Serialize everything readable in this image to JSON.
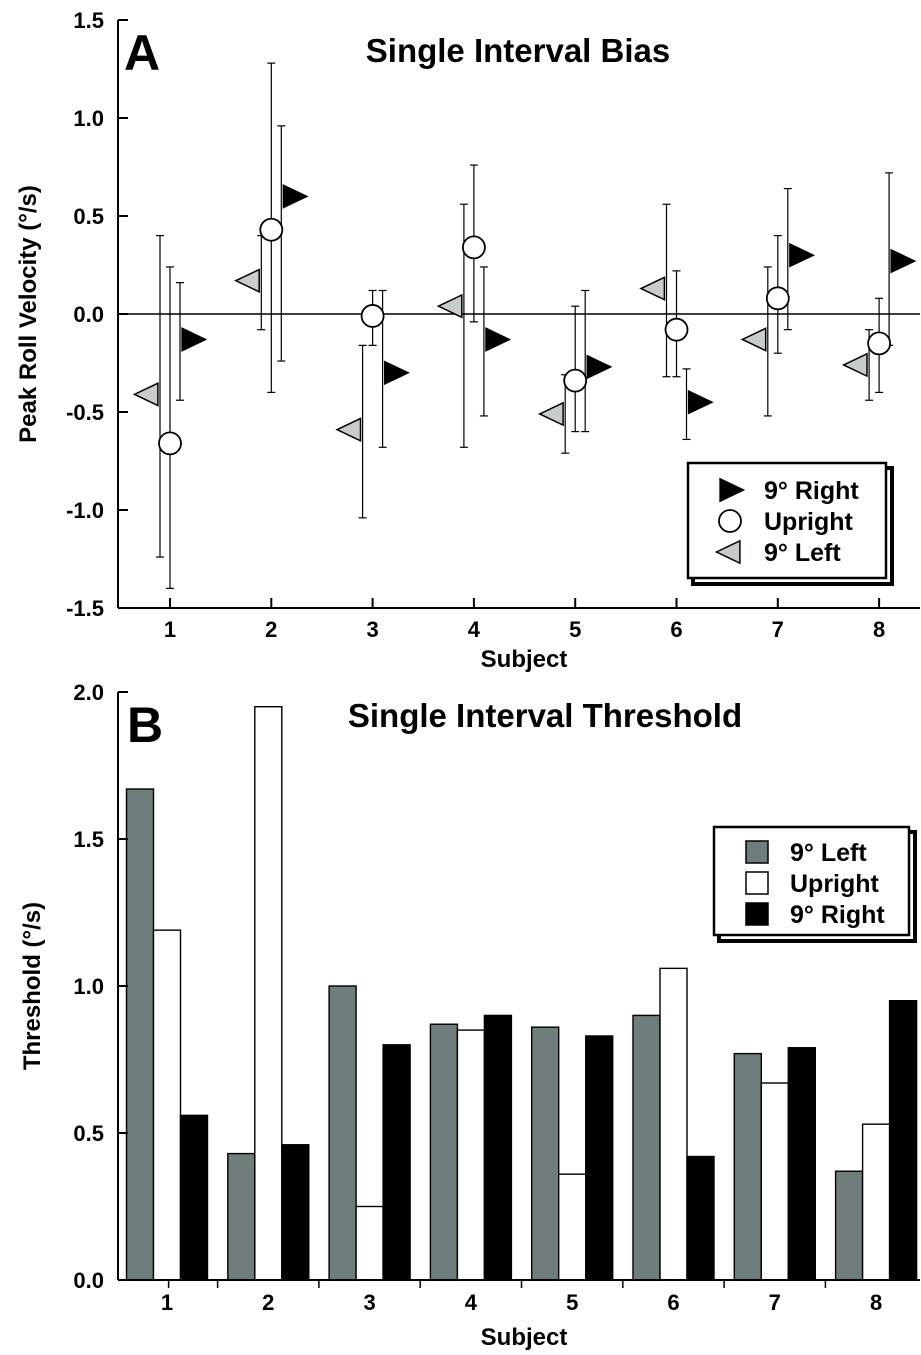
{
  "chart_data": [
    {
      "type": "scatter",
      "panel_label": "A",
      "title": "Single Interval Bias",
      "xlabel": "Subject",
      "ylabel": "Peak Roll Velocity (°/s)",
      "categories": [
        "1",
        "2",
        "3",
        "4",
        "5",
        "6",
        "7",
        "8"
      ],
      "ylim": [
        -1.5,
        1.5
      ],
      "yticks": [
        "1.5",
        "1.0",
        "0.5",
        "0.0",
        "-0.5",
        "-1.0",
        "-1.5"
      ],
      "legend_position": "bottom-right",
      "legend": [
        {
          "label": "9° Right",
          "marker": "triangle-right",
          "color": "#000000"
        },
        {
          "label": "Upright",
          "marker": "circle",
          "color": "#ffffff"
        },
        {
          "label": "9° Left",
          "marker": "triangle-left",
          "color": "#c8cdcb"
        }
      ],
      "series": [
        {
          "name": "9° Right",
          "values": [
            -0.13,
            0.6,
            -0.3,
            -0.13,
            -0.27,
            -0.45,
            0.3,
            0.27
          ],
          "err_low": [
            -0.44,
            -0.24,
            -0.68,
            -0.52,
            -0.6,
            -0.64,
            -0.08,
            -0.16
          ],
          "err_high": [
            0.16,
            0.96,
            0.12,
            0.24,
            0.12,
            -0.28,
            0.64,
            0.72
          ]
        },
        {
          "name": "Upright",
          "values": [
            -0.66,
            0.43,
            -0.01,
            0.34,
            -0.34,
            -0.08,
            0.08,
            -0.15
          ],
          "err_low": [
            -1.4,
            -0.4,
            -0.16,
            -0.04,
            -0.6,
            -0.32,
            -0.2,
            -0.4
          ],
          "err_high": [
            0.24,
            1.28,
            0.12,
            0.76,
            0.04,
            0.22,
            0.4,
            0.08
          ]
        },
        {
          "name": "9° Left",
          "values": [
            -0.41,
            0.17,
            -0.59,
            0.04,
            -0.51,
            0.13,
            -0.13,
            -0.26
          ],
          "err_low": [
            -1.24,
            -0.08,
            -1.04,
            -0.68,
            -0.71,
            -0.32,
            -0.52,
            -0.44
          ],
          "err_high": [
            0.4,
            0.4,
            -0.16,
            0.56,
            -0.31,
            0.56,
            0.24,
            -0.08
          ]
        }
      ]
    },
    {
      "type": "bar",
      "panel_label": "B",
      "title": "Single Interval Threshold",
      "xlabel": "Subject",
      "ylabel": "Threshold (°/s)",
      "categories": [
        "1",
        "2",
        "3",
        "4",
        "5",
        "6",
        "7",
        "8"
      ],
      "ylim": [
        0,
        2.0
      ],
      "yticks": [
        "2.0",
        "1.5",
        "1.0",
        "0.5",
        "0.0"
      ],
      "legend_position": "top-right",
      "legend": [
        {
          "label": "9° Left",
          "color": "#6f7d7d"
        },
        {
          "label": "Upright",
          "color": "#ffffff"
        },
        {
          "label": "9° Right",
          "color": "#000000"
        }
      ],
      "series": [
        {
          "name": "9° Left",
          "color": "#6f7d7d",
          "values": [
            1.67,
            0.43,
            1.0,
            0.87,
            0.86,
            0.9,
            0.77,
            0.37
          ]
        },
        {
          "name": "Upright",
          "color": "#ffffff",
          "values": [
            1.19,
            1.95,
            0.25,
            0.85,
            0.36,
            1.06,
            0.67,
            0.53
          ]
        },
        {
          "name": "9° Right",
          "color": "#000000",
          "values": [
            0.56,
            0.46,
            0.8,
            0.9,
            0.83,
            0.42,
            0.79,
            0.95
          ]
        }
      ]
    }
  ]
}
